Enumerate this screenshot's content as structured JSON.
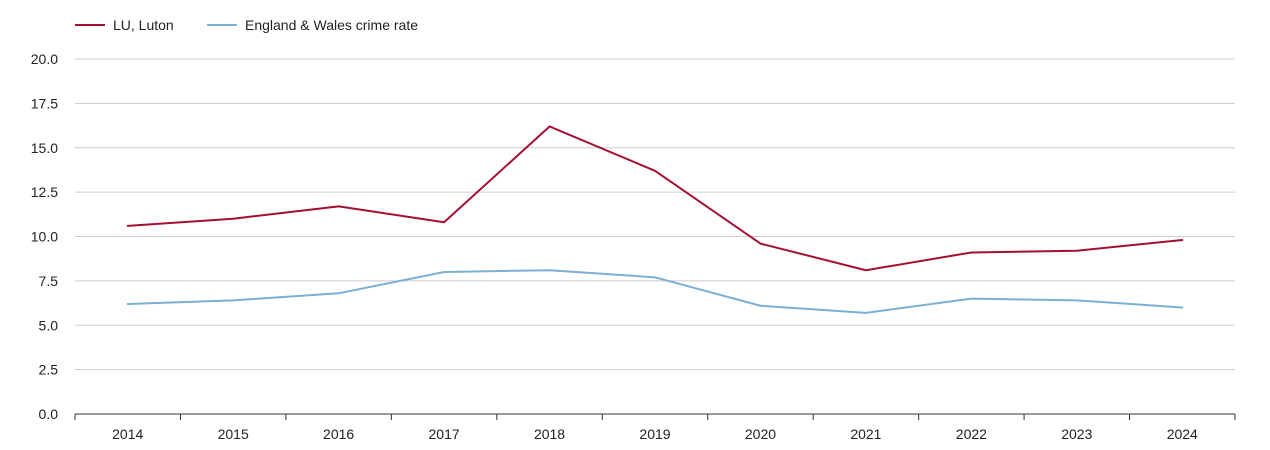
{
  "chart_data": {
    "type": "line",
    "title": "",
    "xlabel": "",
    "ylabel": "",
    "categories": [
      "2014",
      "2015",
      "2016",
      "2017",
      "2018",
      "2019",
      "2020",
      "2021",
      "2022",
      "2023",
      "2024"
    ],
    "ylim": [
      0,
      20
    ],
    "yticks": [
      "0.0",
      "2.5",
      "5.0",
      "7.5",
      "10.0",
      "12.5",
      "15.0",
      "17.5",
      "20.0"
    ],
    "grid": true,
    "legend_position": "top-left",
    "series": [
      {
        "name": "LU, Luton",
        "color": "#a50f33",
        "values": [
          10.6,
          11.0,
          11.7,
          10.8,
          16.2,
          13.7,
          9.6,
          8.1,
          9.1,
          9.2,
          9.8
        ]
      },
      {
        "name": "England & Wales crime rate",
        "color": "#7bafd4",
        "values": [
          6.2,
          6.4,
          6.8,
          8.0,
          8.1,
          7.7,
          6.1,
          5.7,
          6.5,
          6.4,
          6.0
        ]
      }
    ]
  }
}
